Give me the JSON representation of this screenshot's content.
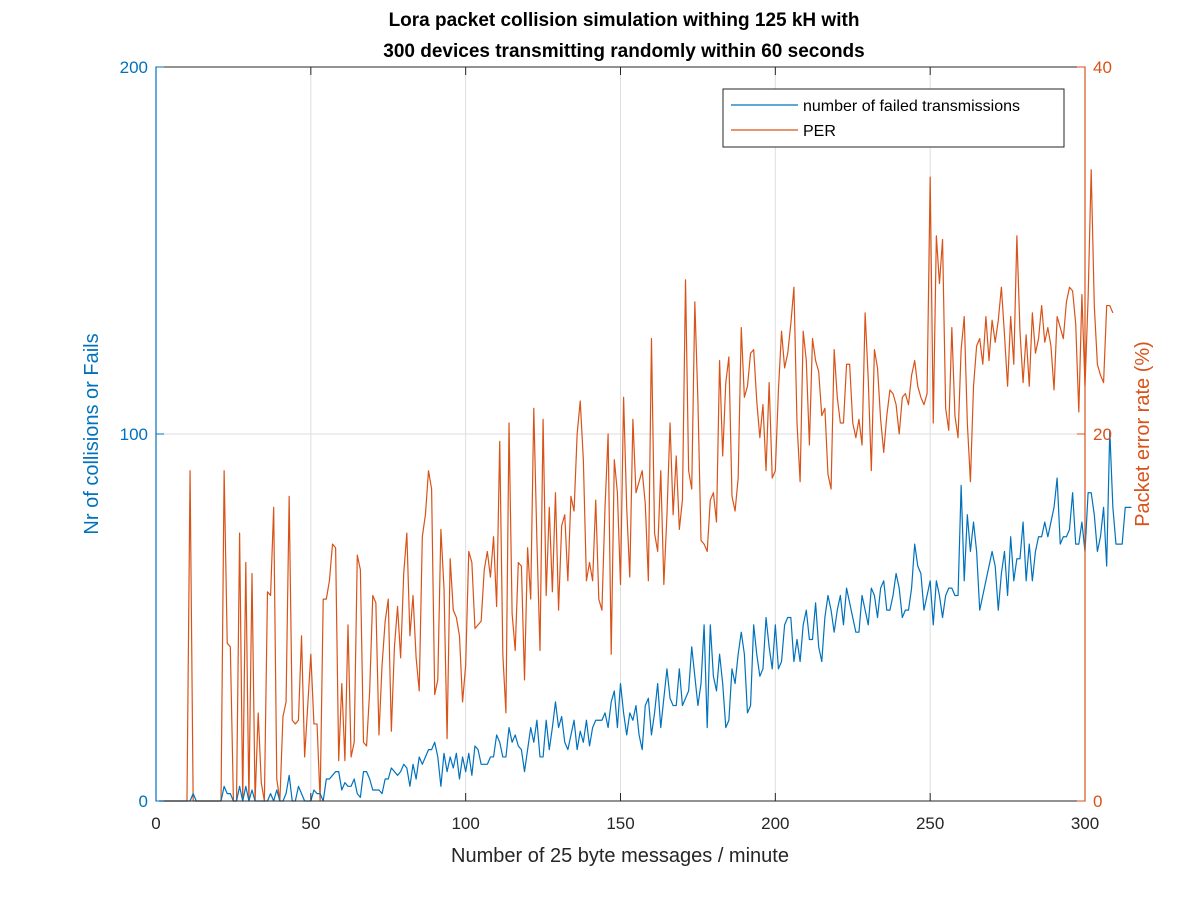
{
  "chart_data": {
    "type": "line",
    "title": [
      "Lora packet collision simulation withing 125 kH with",
      "300 devices transmitting randomly within 60 seconds"
    ],
    "xlabel": "Number of 25 byte  messages / minute",
    "ylabel_left": "Nr of collisions or Fails",
    "ylabel_right": "Packet error rate (%)",
    "xlim": [
      0,
      300
    ],
    "ylim_left": [
      0,
      200
    ],
    "ylim_right": [
      0,
      40
    ],
    "xticks": [
      "0",
      "50",
      "100",
      "150",
      "200",
      "250",
      "300"
    ],
    "yticks_left": [
      "0",
      "100",
      "200"
    ],
    "yticks_right": [
      "0",
      "20",
      "40"
    ],
    "grid": true,
    "legend_position": "top-right",
    "colors": {
      "left_axis": "#0072BD",
      "right_axis": "#D95319",
      "grid": "#dedede",
      "frame": "#262626"
    },
    "series": [
      {
        "name": "number of failed transmissions",
        "axis": "left",
        "color": "#0072BD",
        "x_start": 1,
        "x_step": 1,
        "y": [
          0,
          0,
          0,
          0,
          0,
          0,
          0,
          0,
          0,
          0,
          0,
          2,
          0,
          0,
          0,
          0,
          0,
          0,
          0,
          0,
          0,
          4,
          2,
          2,
          0,
          0,
          4,
          0,
          4,
          0,
          3,
          0,
          0,
          0,
          0,
          0,
          2,
          0,
          3,
          0,
          0,
          2,
          7,
          0,
          0,
          4,
          2,
          0,
          0,
          0,
          3,
          2,
          2,
          0,
          6,
          6,
          7,
          8,
          8,
          3,
          5,
          4,
          4,
          6,
          2,
          1,
          8,
          8,
          6,
          3,
          3,
          3,
          2,
          6,
          6,
          9,
          8,
          7,
          8,
          10,
          9,
          4,
          10,
          6,
          12,
          10,
          12,
          14,
          14,
          16,
          12,
          4,
          13,
          8,
          12,
          9,
          13,
          6,
          12,
          8,
          13,
          7,
          15,
          14,
          10,
          10,
          10,
          12,
          12,
          18,
          16,
          12,
          12,
          20,
          16,
          18,
          15,
          14,
          8,
          14,
          20,
          16,
          22,
          12,
          12,
          22,
          14,
          20,
          27,
          20,
          23,
          16,
          14,
          18,
          22,
          14,
          19,
          16,
          22,
          15,
          20,
          22,
          22,
          22,
          24,
          20,
          27,
          30,
          20,
          32,
          24,
          18,
          24,
          22,
          26,
          18,
          14,
          26,
          28,
          18,
          24,
          32,
          20,
          28,
          36,
          28,
          26,
          26,
          36,
          26,
          28,
          30,
          42,
          34,
          26,
          32,
          48,
          20,
          48,
          34,
          30,
          40,
          32,
          20,
          22,
          36,
          32,
          40,
          46,
          40,
          24,
          26,
          48,
          40,
          34,
          36,
          50,
          42,
          36,
          48,
          36,
          38,
          48,
          50,
          50,
          38,
          44,
          38,
          48,
          52,
          44,
          44,
          54,
          42,
          38,
          50,
          56,
          52,
          46,
          52,
          56,
          48,
          58,
          54,
          50,
          46,
          46,
          56,
          52,
          48,
          58,
          56,
          50,
          58,
          60,
          52,
          52,
          56,
          62,
          58,
          50,
          52,
          52,
          58,
          70,
          64,
          62,
          52,
          56,
          60,
          48,
          60,
          56,
          50,
          56,
          58,
          58,
          56,
          56,
          86,
          60,
          78,
          68,
          76,
          68,
          52,
          56,
          60,
          64,
          68,
          64,
          52,
          62,
          68,
          56,
          72,
          60,
          66,
          66,
          76,
          60,
          70,
          60,
          68,
          72,
          72,
          76,
          72,
          76,
          80,
          88,
          70,
          72,
          72,
          74,
          84,
          70,
          70,
          76,
          68,
          84,
          84,
          78,
          68,
          72,
          80,
          64,
          101,
          80,
          70,
          70,
          70,
          80,
          80,
          80
        ]
      },
      {
        "name": "PER",
        "axis": "right",
        "color": "#D95319",
        "x_start": 1,
        "x_step": 1,
        "y": [
          0,
          0,
          0,
          0,
          0,
          0,
          0,
          0,
          0,
          0,
          18,
          0,
          0,
          0,
          0,
          0,
          0,
          0,
          0,
          0,
          0,
          18,
          8.6,
          8.4,
          0,
          0,
          14.6,
          0,
          13,
          0,
          12.4,
          0,
          4.8,
          1,
          0,
          11.4,
          11.2,
          16,
          1.2,
          0,
          4.6,
          5.4,
          16.6,
          4.4,
          4.2,
          4.4,
          9,
          2.4,
          5.2,
          8,
          4.2,
          4.2,
          0,
          11,
          11,
          12,
          14,
          13.8,
          2.2,
          6.4,
          2.2,
          9.6,
          2.4,
          3.2,
          13.4,
          12.6,
          3.2,
          3,
          6,
          11.2,
          10.8,
          3.6,
          7.4,
          9.8,
          11,
          3.8,
          8.4,
          10.6,
          7.8,
          12.4,
          14.6,
          9,
          11.2,
          7.8,
          6,
          14.4,
          15.6,
          18,
          17,
          5.8,
          6.6,
          14.8,
          11.6,
          3.4,
          13.2,
          10.4,
          10,
          9,
          5.4,
          7.4,
          13.6,
          13,
          9.4,
          9.6,
          9.8,
          12.6,
          13.6,
          12.2,
          14.4,
          10.6,
          19.6,
          8,
          4.8,
          20.6,
          10.2,
          8.2,
          13,
          12.8,
          6.6,
          13.8,
          11,
          21.4,
          14.2,
          8.2,
          20.8,
          11.2,
          16,
          11.4,
          16.8,
          10.4,
          15,
          15.6,
          12,
          16.6,
          15.8,
          20,
          21.8,
          18.6,
          12,
          13,
          12,
          16.4,
          11,
          10.4,
          16,
          20,
          8,
          18.6,
          16.8,
          11.8,
          22,
          16,
          12.2,
          20.8,
          16.8,
          17.4,
          18,
          16.2,
          12,
          25.2,
          14.6,
          13.6,
          18,
          11.8,
          15.6,
          20.6,
          15.6,
          18.8,
          14.8,
          16.4,
          28.4,
          18,
          17,
          27.2,
          21.8,
          14.2,
          14,
          13.6,
          16.4,
          16.8,
          15.2,
          24,
          18.8,
          22.8,
          24.2,
          16.6,
          15.8,
          17.6,
          25.8,
          22,
          22.6,
          24.4,
          24.6,
          21.8,
          19.8,
          21.6,
          18,
          22.8,
          17.6,
          18,
          22.4,
          25.6,
          23.6,
          24.4,
          26,
          28,
          20.6,
          17.4,
          25.6,
          24,
          19.4,
          25.2,
          24,
          23.4,
          21,
          21.4,
          17.8,
          17,
          24.6,
          22,
          20.6,
          20.6,
          23.8,
          23.8,
          20.6,
          19.8,
          20.8,
          19.4,
          26.6,
          23,
          18,
          24.6,
          23.6,
          20.8,
          19,
          21,
          22.4,
          22.2,
          21.6,
          20,
          22,
          22.2,
          21.6,
          23.2,
          24,
          22.6,
          22,
          21.6,
          22.2,
          34,
          20.6,
          30.8,
          28.2,
          30.6,
          21.4,
          20.2,
          25.8,
          21,
          19.8,
          24.6,
          26.4,
          20.6,
          17.4,
          22.6,
          24.8,
          25.2,
          23.8,
          26.4,
          24,
          26.2,
          25,
          26.2,
          28,
          25.4,
          22.6,
          26.4,
          23.8,
          30.8,
          25.6,
          22.8,
          25.4,
          22.6,
          26.6,
          24.4,
          25.2,
          27,
          25,
          25.8,
          24.8,
          22.4,
          26.4,
          25.8,
          25.2,
          27.2,
          28,
          27.8,
          26,
          21.2,
          27.6,
          22.6,
          27.4,
          34.4,
          27,
          23.8,
          23.2,
          22.8,
          27,
          27,
          26.6
        ]
      }
    ]
  }
}
